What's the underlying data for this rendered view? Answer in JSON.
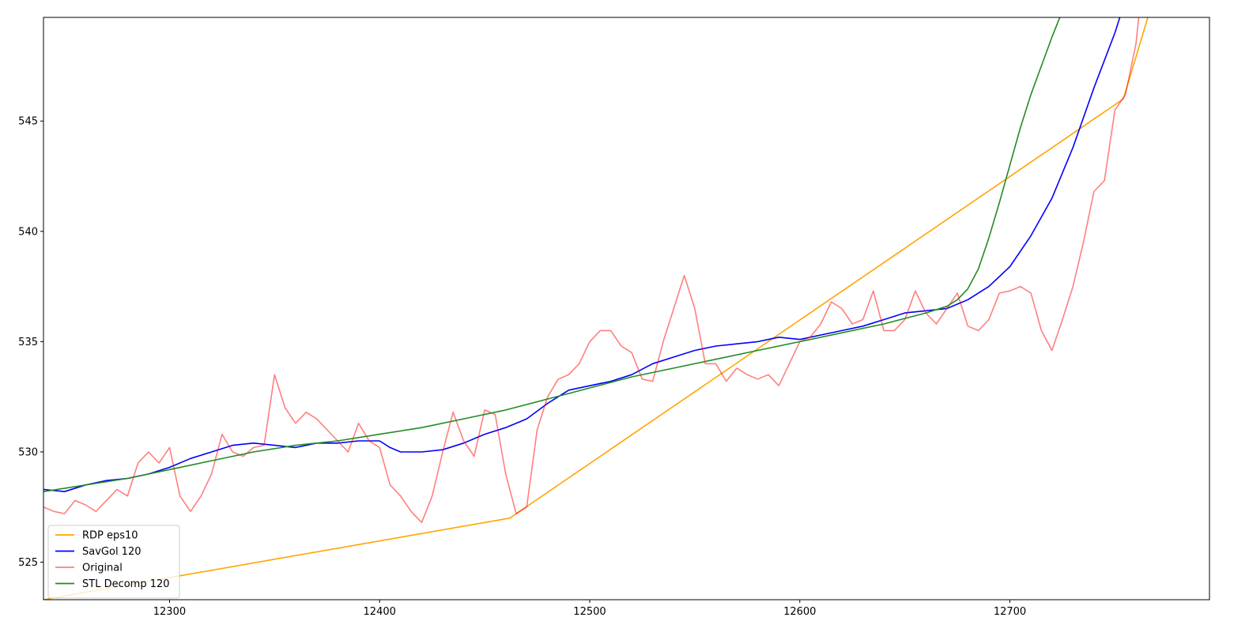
{
  "chart_data": {
    "type": "line",
    "title": "",
    "xlabel": "",
    "ylabel": "",
    "xlim": [
      12240,
      12795
    ],
    "ylim": [
      523.3,
      549.7
    ],
    "xticks": [
      12300,
      12400,
      12500,
      12600,
      12700
    ],
    "yticks": [
      525,
      530,
      535,
      540,
      545
    ],
    "grid": false,
    "legend_position": "bottom-left",
    "series": [
      {
        "name": "RDP eps10",
        "color": "#ffa500",
        "x": [
          12240,
          12462,
          12754,
          12795
        ],
        "y": [
          523.3,
          527.0,
          546.0,
          559.0
        ]
      },
      {
        "name": "SavGol 120",
        "color": "#0000ff",
        "x": [
          12240,
          12250,
          12260,
          12270,
          12280,
          12290,
          12300,
          12310,
          12320,
          12330,
          12340,
          12350,
          12360,
          12370,
          12380,
          12390,
          12400,
          12405,
          12410,
          12415,
          12420,
          12430,
          12440,
          12450,
          12460,
          12470,
          12480,
          12490,
          12500,
          12510,
          12520,
          12530,
          12540,
          12550,
          12560,
          12570,
          12580,
          12590,
          12600,
          12610,
          12620,
          12630,
          12640,
          12650,
          12660,
          12670,
          12680,
          12690,
          12700,
          12710,
          12720,
          12730,
          12740,
          12750,
          12760
        ],
        "y": [
          528.3,
          528.2,
          528.5,
          528.7,
          528.8,
          529.0,
          529.3,
          529.7,
          530.0,
          530.3,
          530.4,
          530.3,
          530.2,
          530.4,
          530.4,
          530.5,
          530.5,
          530.2,
          530.0,
          530.0,
          530.0,
          530.1,
          530.4,
          530.8,
          531.1,
          531.5,
          532.2,
          532.8,
          533.0,
          533.2,
          533.5,
          534.0,
          534.3,
          534.6,
          534.8,
          534.9,
          535.0,
          535.2,
          535.1,
          535.3,
          535.5,
          535.7,
          536.0,
          536.3,
          536.4,
          536.5,
          536.9,
          537.5,
          538.4,
          539.8,
          541.5,
          543.8,
          546.5,
          549.0,
          552.0
        ]
      },
      {
        "name": "Original",
        "color": "#ff0000",
        "x": [
          12240,
          12245,
          12250,
          12255,
          12260,
          12265,
          12270,
          12275,
          12280,
          12285,
          12290,
          12295,
          12300,
          12305,
          12310,
          12315,
          12320,
          12325,
          12330,
          12335,
          12340,
          12345,
          12350,
          12355,
          12360,
          12365,
          12370,
          12375,
          12380,
          12385,
          12390,
          12395,
          12400,
          12405,
          12410,
          12415,
          12420,
          12425,
          12430,
          12435,
          12440,
          12445,
          12450,
          12455,
          12460,
          12465,
          12470,
          12475,
          12480,
          12485,
          12490,
          12495,
          12500,
          12505,
          12510,
          12515,
          12520,
          12525,
          12530,
          12535,
          12540,
          12545,
          12550,
          12555,
          12560,
          12565,
          12570,
          12575,
          12580,
          12585,
          12590,
          12595,
          12600,
          12605,
          12610,
          12615,
          12620,
          12625,
          12630,
          12635,
          12640,
          12645,
          12650,
          12655,
          12660,
          12665,
          12670,
          12675,
          12680,
          12685,
          12690,
          12695,
          12700,
          12705,
          12710,
          12715,
          12720,
          12725,
          12730,
          12735,
          12740,
          12745,
          12750,
          12755,
          12760,
          12765
        ],
        "y": [
          527.5,
          527.3,
          527.2,
          527.8,
          527.6,
          527.3,
          527.8,
          528.3,
          528.0,
          529.5,
          530.0,
          529.5,
          530.2,
          528.0,
          527.3,
          528.0,
          529.0,
          530.8,
          530.0,
          529.8,
          530.2,
          530.3,
          533.5,
          532.0,
          531.3,
          531.8,
          531.5,
          531.0,
          530.5,
          530.0,
          531.3,
          530.5,
          530.2,
          528.5,
          528.0,
          527.3,
          526.8,
          528.0,
          530.0,
          531.8,
          530.5,
          529.8,
          531.9,
          531.7,
          529.0,
          527.2,
          527.5,
          531.0,
          532.5,
          533.3,
          533.5,
          534.0,
          535.0,
          535.5,
          535.5,
          534.8,
          534.5,
          533.3,
          533.2,
          535.0,
          536.5,
          538.0,
          536.5,
          534.0,
          534.0,
          533.2,
          533.8,
          533.5,
          533.3,
          533.5,
          533.0,
          534.0,
          535.0,
          535.2,
          535.8,
          536.8,
          536.5,
          535.8,
          536.0,
          537.3,
          535.5,
          535.5,
          536.0,
          537.3,
          536.3,
          535.8,
          536.5,
          537.2,
          535.7,
          535.5,
          536.0,
          537.2,
          537.3,
          537.5,
          537.2,
          535.5,
          534.6,
          536.0,
          537.5,
          539.5,
          541.8,
          542.3,
          545.5,
          546.2,
          548.5,
          553.0
        ]
      },
      {
        "name": "STL Decomp 120",
        "color": "#228b22",
        "x": [
          12240,
          12260,
          12280,
          12300,
          12320,
          12340,
          12360,
          12380,
          12400,
          12420,
          12440,
          12460,
          12480,
          12500,
          12520,
          12540,
          12560,
          12580,
          12600,
          12620,
          12640,
          12660,
          12670,
          12675,
          12680,
          12685,
          12690,
          12695,
          12700,
          12705,
          12710,
          12715,
          12720,
          12725,
          12730
        ],
        "y": [
          528.2,
          528.5,
          528.8,
          529.2,
          529.6,
          530.0,
          530.3,
          530.5,
          530.8,
          531.1,
          531.5,
          531.9,
          532.4,
          532.9,
          533.4,
          533.8,
          534.2,
          534.6,
          535.0,
          535.4,
          535.8,
          536.3,
          536.6,
          536.9,
          537.4,
          538.3,
          539.7,
          541.3,
          543.0,
          544.7,
          546.2,
          547.5,
          548.8,
          550.0,
          551.2
        ]
      }
    ]
  }
}
